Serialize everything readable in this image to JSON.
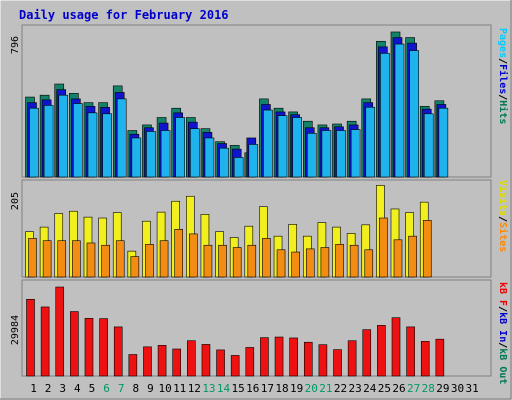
{
  "chart_data": [
    {
      "type": "bar",
      "panel": "top",
      "title": "Daily usage for February 2016",
      "ymax_label": "796",
      "ylim": [
        0,
        796
      ],
      "categories": [
        "1",
        "2",
        "3",
        "4",
        "5",
        "6",
        "7",
        "8",
        "9",
        "10",
        "11",
        "12",
        "13",
        "14",
        "15",
        "16",
        "17",
        "18",
        "19",
        "20",
        "21",
        "22",
        "23",
        "24",
        "25",
        "26",
        "27",
        "28",
        "29",
        "30",
        "31"
      ],
      "legend_right": [
        {
          "text": "Pages",
          "color": "#00ccff"
        },
        {
          "text": "/",
          "color": "#000000"
        },
        {
          "text": "Files",
          "color": "#0000cc"
        },
        {
          "text": "/",
          "color": "#000000"
        },
        {
          "text": "Hits",
          "color": "#007755"
        }
      ],
      "series": [
        {
          "name": "Hits",
          "color": "#128368",
          "values": [
            430,
            440,
            500,
            450,
            400,
            400,
            490,
            250,
            280,
            320,
            370,
            320,
            260,
            190,
            170,
            130,
            420,
            370,
            350,
            300,
            280,
            285,
            300,
            420,
            730,
            780,
            750,
            380,
            410,
            null,
            null
          ]
        },
        {
          "name": "Files",
          "color": "#0f15cc",
          "values": [
            400,
            415,
            470,
            420,
            380,
            375,
            455,
            230,
            265,
            290,
            345,
            295,
            240,
            180,
            150,
            210,
            390,
            350,
            335,
            265,
            265,
            270,
            280,
            400,
            700,
            750,
            720,
            365,
            390,
            null,
            null
          ]
        },
        {
          "name": "Pages",
          "color": "#1eb3ec",
          "values": [
            370,
            385,
            440,
            395,
            345,
            340,
            420,
            210,
            245,
            250,
            320,
            260,
            210,
            155,
            105,
            175,
            360,
            330,
            320,
            235,
            250,
            250,
            255,
            375,
            665,
            715,
            680,
            340,
            370,
            null,
            null
          ]
        }
      ]
    },
    {
      "type": "bar",
      "panel": "middle",
      "ymax_label": "205",
      "ylim": [
        0,
        205
      ],
      "legend_right": [
        {
          "text": "Visits",
          "color": "#dddd00"
        },
        {
          "text": "/",
          "color": "#000000"
        },
        {
          "text": "Sites",
          "color": "#ff8800"
        }
      ],
      "series": [
        {
          "name": "Visits",
          "color": "#f2ef1e",
          "values": [
            100,
            110,
            140,
            145,
            132,
            130,
            142,
            57,
            123,
            143,
            167,
            178,
            138,
            100,
            87,
            112,
            155,
            90,
            116,
            90,
            120,
            110,
            96,
            115,
            202,
            150,
            142,
            165,
            null,
            null,
            null
          ]
        },
        {
          "name": "Sites",
          "color": "#f28c12",
          "values": [
            85,
            80,
            80,
            80,
            75,
            70,
            80,
            45,
            72,
            80,
            105,
            95,
            70,
            70,
            65,
            70,
            85,
            60,
            55,
            62,
            65,
            72,
            70,
            60,
            130,
            82,
            90,
            125,
            null,
            null,
            null
          ]
        }
      ]
    },
    {
      "type": "bar",
      "panel": "bottom",
      "ymax_label": "29984",
      "ylim": [
        0,
        29984
      ],
      "legend_right": [
        {
          "text": "kB F",
          "color": "#ee0000"
        },
        {
          "text": "/",
          "color": "#000000"
        },
        {
          "text": "kB In",
          "color": "#0000cc"
        },
        {
          "text": "/",
          "color": "#000000"
        },
        {
          "text": "kB Out",
          "color": "#007755"
        }
      ],
      "series": [
        {
          "name": "kB F",
          "color": "#ee1111",
          "values": [
            25000,
            22500,
            29000,
            21000,
            18800,
            18700,
            16000,
            7000,
            9500,
            10000,
            8800,
            11500,
            10300,
            8500,
            6700,
            9300,
            12500,
            12700,
            12400,
            11000,
            10200,
            8600,
            11500,
            15100,
            16500,
            19000,
            16000,
            11300,
            12000,
            null,
            null
          ]
        }
      ]
    }
  ],
  "x_axis": {
    "labels": [
      "1",
      "2",
      "3",
      "4",
      "5",
      "6",
      "7",
      "8",
      "9",
      "10",
      "11",
      "12",
      "13",
      "14",
      "15",
      "16",
      "17",
      "18",
      "19",
      "20",
      "21",
      "22",
      "23",
      "24",
      "25",
      "26",
      "27",
      "28",
      "29",
      "30",
      "31"
    ],
    "weekend_days": [
      6,
      7,
      13,
      14,
      20,
      21,
      27,
      28
    ],
    "weekday_color": "#000000",
    "weekend_color": "#009966"
  },
  "colors": {
    "background": "#c0c0c0",
    "title": "#0000cc",
    "frame_dark": "#808080",
    "frame_light": "#ffffff"
  }
}
